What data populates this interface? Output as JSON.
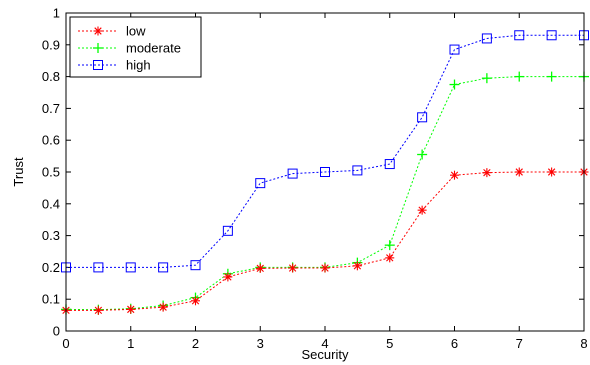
{
  "chart_data": {
    "type": "line",
    "title": "",
    "xlabel": "Security",
    "ylabel": "Trust",
    "xlim": [
      0,
      8
    ],
    "ylim": [
      0,
      1
    ],
    "xticks": [
      0,
      1,
      2,
      3,
      4,
      5,
      6,
      7,
      8
    ],
    "yticks": [
      0,
      0.1,
      0.2,
      0.3,
      0.4,
      0.5,
      0.6,
      0.7,
      0.8,
      0.9,
      1
    ],
    "xtick_labels": [
      "0",
      "1",
      "2",
      "3",
      "4",
      "5",
      "6",
      "7",
      "8"
    ],
    "ytick_labels": [
      "0",
      "0.1",
      "0.2",
      "0.3",
      "0.4",
      "0.5",
      "0.6",
      "0.7",
      "0.8",
      "0.9",
      "1"
    ],
    "grid": false,
    "legend_position": "top-left",
    "x": [
      0,
      0.5,
      1,
      1.5,
      2,
      2.5,
      3,
      3.5,
      4,
      4.5,
      5,
      5.5,
      6,
      6.5,
      7,
      7.5,
      8
    ],
    "series": [
      {
        "name": "low",
        "color": "#ff0000",
        "marker": "asterisk",
        "values": [
          0.065,
          0.065,
          0.068,
          0.075,
          0.095,
          0.17,
          0.197,
          0.198,
          0.198,
          0.205,
          0.23,
          0.38,
          0.49,
          0.498,
          0.5,
          0.5,
          0.5
        ]
      },
      {
        "name": "moderate",
        "color": "#00ff00",
        "marker": "plus",
        "values": [
          0.068,
          0.067,
          0.07,
          0.08,
          0.105,
          0.18,
          0.2,
          0.2,
          0.2,
          0.215,
          0.27,
          0.555,
          0.775,
          0.795,
          0.8,
          0.8,
          0.8
        ]
      },
      {
        "name": "high",
        "color": "#0000ff",
        "marker": "square",
        "values": [
          0.2,
          0.2,
          0.2,
          0.2,
          0.207,
          0.315,
          0.465,
          0.495,
          0.5,
          0.505,
          0.525,
          0.672,
          0.885,
          0.92,
          0.93,
          0.93,
          0.93
        ]
      }
    ]
  }
}
